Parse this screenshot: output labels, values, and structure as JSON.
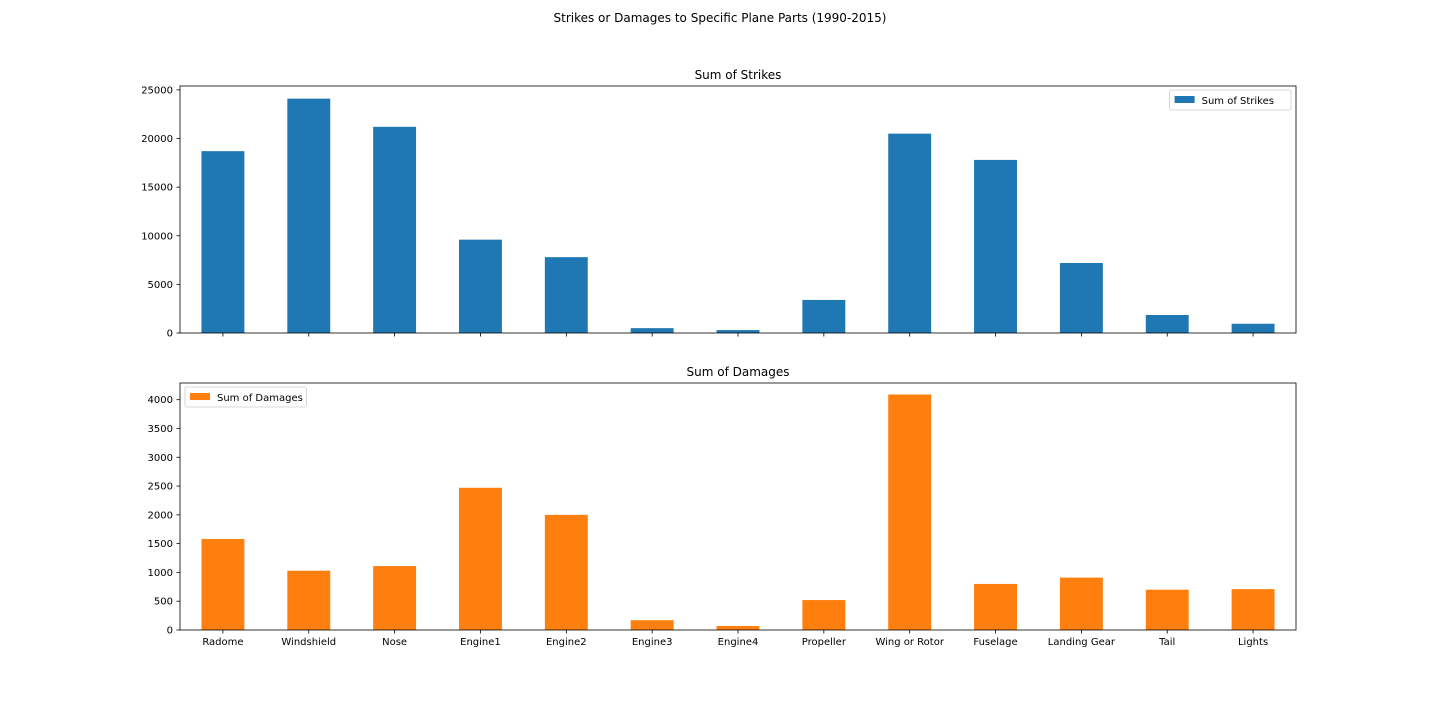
{
  "figure_title": "Strikes or Damages to Specific Plane Parts (1990-2015)",
  "colors": {
    "strikes": "#1f77b4",
    "damages": "#ff7f0e",
    "axis": "#000000"
  },
  "chart_data": [
    {
      "type": "bar",
      "title": "Sum of Strikes",
      "categories": [
        "Radome",
        "Windshield",
        "Nose",
        "Engine1",
        "Engine2",
        "Engine3",
        "Engine4",
        "Propeller",
        "Wing or Rotor",
        "Fuselage",
        "Landing Gear",
        "Tail",
        "Lights"
      ],
      "series": [
        {
          "name": "Sum of Strikes",
          "color": "#1f77b4",
          "values": [
            18700,
            24100,
            21200,
            9600,
            7800,
            500,
            300,
            3400,
            20500,
            17800,
            7200,
            1850,
            950
          ]
        }
      ],
      "ylim": [
        0,
        25400
      ],
      "yticks": [
        0,
        5000,
        10000,
        15000,
        20000,
        25000
      ],
      "show_category_labels": false,
      "legend": "top-right",
      "grid": false
    },
    {
      "type": "bar",
      "title": "Sum of Damages",
      "categories": [
        "Radome",
        "Windshield",
        "Nose",
        "Engine1",
        "Engine2",
        "Engine3",
        "Engine4",
        "Propeller",
        "Wing or Rotor",
        "Fuselage",
        "Landing Gear",
        "Tail",
        "Lights"
      ],
      "series": [
        {
          "name": "Sum of Damages",
          "color": "#ff7f0e",
          "values": [
            1580,
            1030,
            1110,
            2470,
            2000,
            170,
            70,
            520,
            4090,
            800,
            910,
            700,
            710
          ]
        }
      ],
      "ylim": [
        0,
        4290
      ],
      "yticks": [
        0,
        500,
        1000,
        1500,
        2000,
        2500,
        3000,
        3500,
        4000
      ],
      "show_category_labels": true,
      "legend": "top-left",
      "grid": false
    }
  ]
}
